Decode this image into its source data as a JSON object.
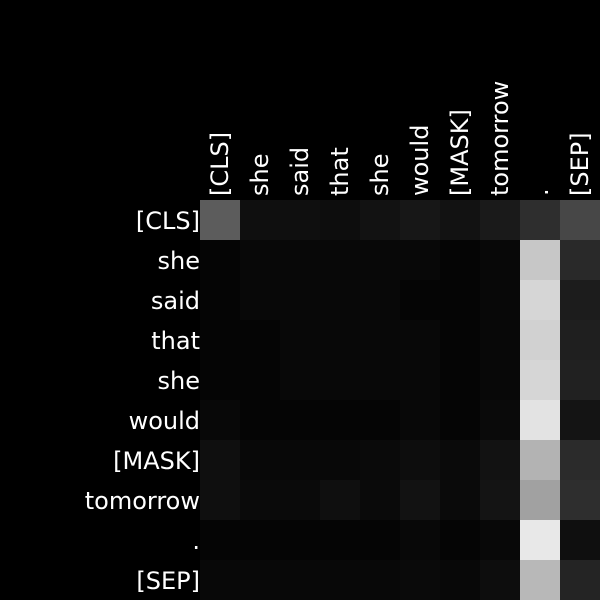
{
  "chart_data": {
    "type": "heatmap",
    "title": "",
    "xlabel": "",
    "ylabel": "",
    "x_categories": [
      "[CLS]",
      "she",
      "said",
      "that",
      "she",
      "would",
      "[MASK]",
      "tomorrow",
      ".",
      "[SEP]"
    ],
    "y_categories": [
      "[CLS]",
      "she",
      "said",
      "that",
      "she",
      "would",
      "[MASK]",
      "tomorrow",
      ".",
      "[SEP]"
    ],
    "x_tick_position": "top",
    "x_tick_rotation": 90,
    "colormap": "grayscale",
    "value_range": [
      0,
      1
    ],
    "grid": false,
    "values": [
      [
        0.36,
        0.06,
        0.06,
        0.05,
        0.07,
        0.09,
        0.07,
        0.1,
        0.18,
        0.28
      ],
      [
        0.02,
        0.03,
        0.03,
        0.03,
        0.03,
        0.03,
        0.02,
        0.03,
        0.78,
        0.16
      ],
      [
        0.02,
        0.03,
        0.03,
        0.03,
        0.03,
        0.02,
        0.02,
        0.03,
        0.84,
        0.11
      ],
      [
        0.02,
        0.02,
        0.03,
        0.03,
        0.03,
        0.03,
        0.02,
        0.03,
        0.82,
        0.12
      ],
      [
        0.02,
        0.02,
        0.03,
        0.03,
        0.03,
        0.03,
        0.02,
        0.03,
        0.84,
        0.13
      ],
      [
        0.03,
        0.02,
        0.02,
        0.02,
        0.02,
        0.03,
        0.02,
        0.04,
        0.89,
        0.08
      ],
      [
        0.06,
        0.03,
        0.03,
        0.03,
        0.04,
        0.05,
        0.04,
        0.07,
        0.7,
        0.17
      ],
      [
        0.06,
        0.04,
        0.04,
        0.06,
        0.04,
        0.07,
        0.04,
        0.08,
        0.63,
        0.18
      ],
      [
        0.02,
        0.02,
        0.02,
        0.02,
        0.02,
        0.03,
        0.02,
        0.03,
        0.91,
        0.06
      ],
      [
        0.03,
        0.03,
        0.03,
        0.03,
        0.03,
        0.04,
        0.03,
        0.05,
        0.72,
        0.14
      ]
    ]
  }
}
